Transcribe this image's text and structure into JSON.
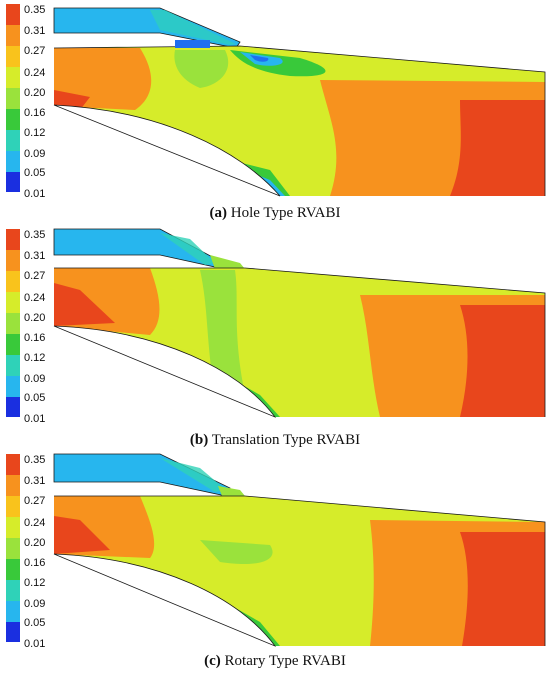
{
  "colorbar": {
    "ticks": [
      "0.35",
      "0.31",
      "0.27",
      "0.24",
      "0.20",
      "0.16",
      "0.12",
      "0.09",
      "0.05",
      "0.01"
    ],
    "colors": [
      "#e8461c",
      "#f7921e",
      "#f9c31c",
      "#d6ec2a",
      "#9ae23c",
      "#39c93a",
      "#2fd2b8",
      "#27b6ee",
      "#1f6ff0",
      "#1a2fe0"
    ]
  },
  "panels": [
    {
      "id": "a",
      "label_letter": "(a)",
      "label_text": " Hole Type RVABI"
    },
    {
      "id": "b",
      "label_letter": "(b)",
      "label_text": " Translation Type RVABI"
    },
    {
      "id": "c",
      "label_letter": "(c)",
      "label_text": " Rotary Type RVABI"
    }
  ]
}
